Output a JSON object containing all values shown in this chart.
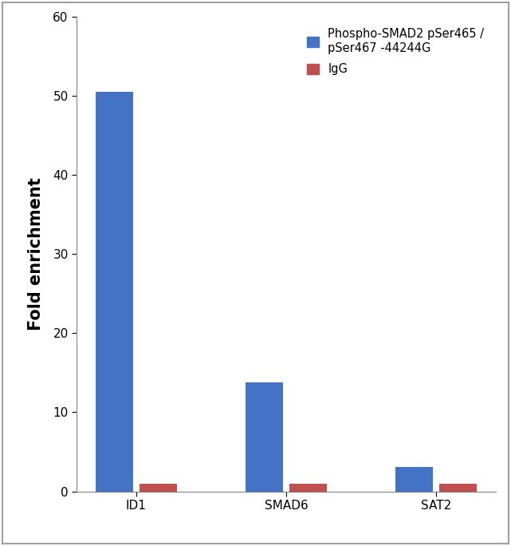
{
  "categories": [
    "ID1",
    "SMAD6",
    "SAT2"
  ],
  "blue_values": [
    50.5,
    13.8,
    3.1
  ],
  "red_values": [
    1.0,
    1.0,
    1.0
  ],
  "blue_color": "#4472C4",
  "red_color": "#C0504D",
  "ylabel": "Fold enrichment",
  "ylim": [
    0,
    60
  ],
  "yticks": [
    0,
    10,
    20,
    30,
    40,
    50,
    60
  ],
  "legend_blue": "Phospho-SMAD2 pSer465 /\npSer467 -44244G",
  "legend_red": "IgG",
  "bar_width": 0.25,
  "figure_bg": "#ffffff",
  "plot_bg": "#ffffff",
  "border_color": "#a0a0a0",
  "ylabel_fontsize": 15,
  "tick_fontsize": 11,
  "legend_fontsize": 10.5
}
